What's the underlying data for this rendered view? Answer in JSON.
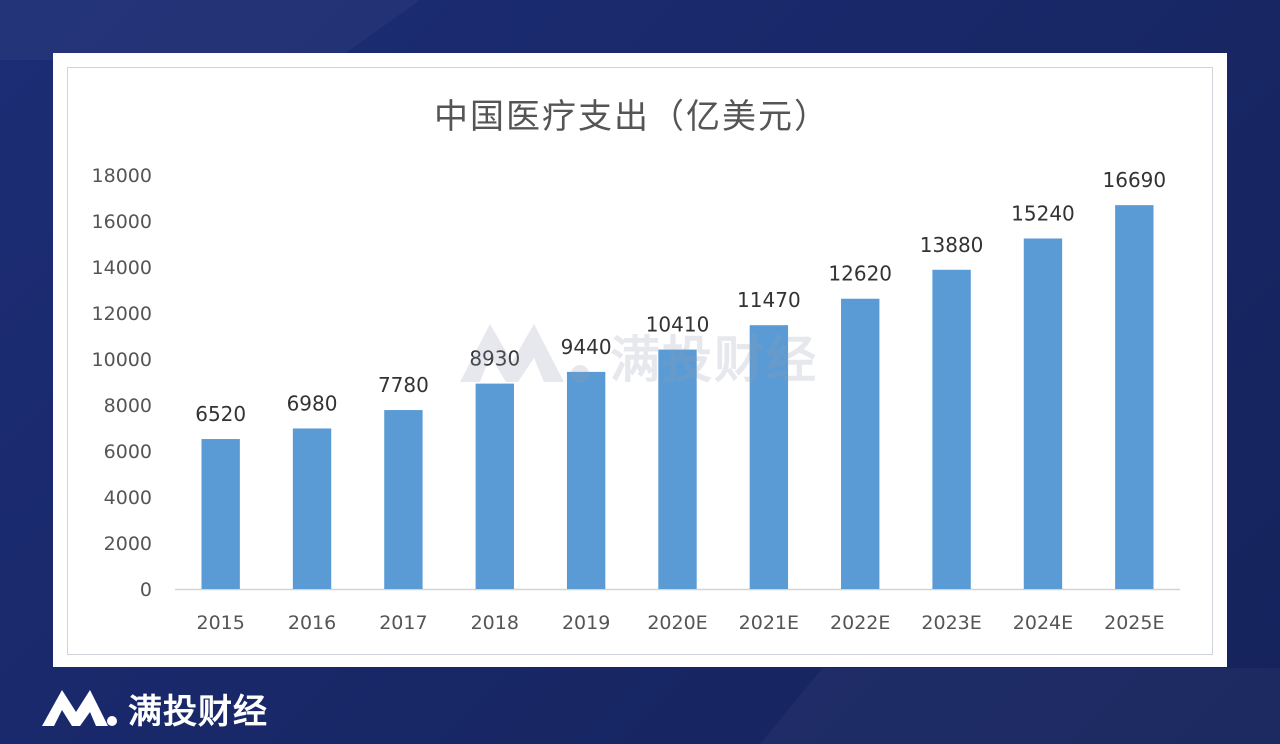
{
  "brand": {
    "name": "满投财经"
  },
  "watermark": {
    "text": "满投财经"
  },
  "chart_data": {
    "type": "bar",
    "title": "中国医疗支出（亿美元）",
    "categories": [
      "2015",
      "2016",
      "2017",
      "2018",
      "2019",
      "2020E",
      "2021E",
      "2022E",
      "2023E",
      "2024E",
      "2025E"
    ],
    "values": [
      6520,
      6980,
      7780,
      8930,
      9440,
      10410,
      11470,
      12620,
      13880,
      15240,
      16690
    ],
    "ylim": [
      0,
      18000
    ],
    "yticks": [
      0,
      2000,
      4000,
      6000,
      8000,
      10000,
      12000,
      14000,
      16000,
      18000
    ],
    "xlabel": "",
    "ylabel": "",
    "grid": false,
    "legend": "none",
    "bar_color": "#5b9bd5",
    "data_labels": true
  }
}
